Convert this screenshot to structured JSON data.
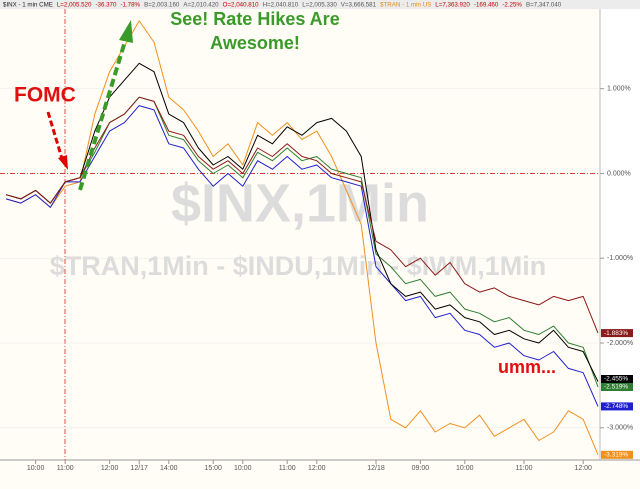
{
  "chart_data": {
    "type": "line",
    "header": {
      "items": [
        {
          "text": "$INX - 1 min CME",
          "color": "#202020"
        },
        {
          "text": "L=2,005.520",
          "color": "#c00000"
        },
        {
          "text": "-36.370",
          "color": "#c00000"
        },
        {
          "text": "-1.78%",
          "color": "#c00000"
        },
        {
          "text": "B=2,003.160",
          "color": "#555555"
        },
        {
          "text": "A=2,010.420",
          "color": "#555555"
        },
        {
          "text": "O=2,040.810",
          "color": "#c00000"
        },
        {
          "text": "H=2,040.810",
          "color": "#555555"
        },
        {
          "text": "L=2,005.330",
          "color": "#555555"
        },
        {
          "text": "V=3,666,581",
          "color": "#555555"
        },
        {
          "text": "$TRAN - 1 min US",
          "color": "#e08a1e"
        },
        {
          "text": "L=7,363.920",
          "color": "#c00000"
        },
        {
          "text": "-169.460",
          "color": "#c00000"
        },
        {
          "text": "-2.25%",
          "color": "#c00000"
        },
        {
          "text": "B=7,347.040",
          "color": "#555555"
        }
      ]
    },
    "watermarks": [
      "$INX,1Min",
      "$TRAN,1Min - $INDU,1Min - $IWM,1Min"
    ],
    "annotations": [
      "FOMC",
      "See! Rate Hikes Are",
      "Awesome!",
      "umm..."
    ],
    "categories": [
      null,
      null,
      "10:00",
      null,
      "11:00",
      null,
      null,
      "12:00",
      null,
      "12/17",
      null,
      "14:00",
      null,
      null,
      "15:00",
      null,
      "10:00",
      null,
      null,
      "11:00",
      null,
      "12:00",
      null,
      null,
      null,
      "12/18",
      null,
      null,
      "09:00",
      null,
      null,
      "10:00",
      null,
      null,
      null,
      "11:00",
      null,
      null,
      null,
      "12:00",
      null
    ],
    "ylim": [
      -3.38,
      1.94
    ],
    "yticks": [
      {
        "value": 1,
        "label": "1.000%"
      },
      {
        "value": 0,
        "label": "0.000%"
      },
      {
        "value": -1,
        "label": "-1.000%"
      },
      {
        "value": -2,
        "label": "-2.000%"
      },
      {
        "value": -3,
        "label": "-3.000%"
      }
    ],
    "series": [
      {
        "color": "#f0901e",
        "values": [
          -0.3,
          -0.35,
          -0.25,
          -0.4,
          -0.15,
          -0.1,
          0.7,
          1.2,
          1.5,
          1.8,
          1.55,
          0.9,
          0.75,
          0.5,
          0.2,
          0.35,
          0.1,
          0.6,
          0.45,
          0.6,
          0.4,
          0.5,
          0.2,
          -0.2,
          -0.6,
          -2.0,
          -2.9,
          -3.0,
          -2.8,
          -3.05,
          -2.95,
          -3.0,
          -2.85,
          -3.1,
          -3.0,
          -2.9,
          -3.15,
          -3.05,
          -2.8,
          -2.9,
          -3.319
        ],
        "value_labels": [
          null,
          null,
          null,
          null,
          null,
          null,
          null,
          null,
          null,
          null,
          null,
          null,
          null,
          null,
          null,
          null,
          null,
          null,
          null,
          null,
          null,
          null,
          null,
          null,
          null,
          null,
          null,
          null,
          null,
          null,
          null,
          null,
          null,
          null,
          null,
          null,
          null,
          null,
          null,
          null,
          "-3.319%"
        ]
      },
      {
        "color": "#1f1fd0",
        "values": [
          -0.3,
          -0.35,
          -0.25,
          -0.4,
          -0.1,
          -0.1,
          0.2,
          0.5,
          0.6,
          0.8,
          0.75,
          0.35,
          0.3,
          0.05,
          -0.15,
          0.0,
          -0.15,
          0.15,
          0.05,
          0.2,
          0.05,
          0.1,
          -0.05,
          -0.1,
          -0.15,
          -1.1,
          -1.3,
          -1.5,
          -1.45,
          -1.7,
          -1.65,
          -1.85,
          -1.9,
          -2.05,
          -2.0,
          -2.15,
          -2.2,
          -2.1,
          -2.3,
          -2.35,
          -2.748
        ],
        "value_labels": [
          null,
          null,
          null,
          null,
          null,
          null,
          null,
          null,
          null,
          null,
          null,
          null,
          null,
          null,
          null,
          null,
          null,
          null,
          null,
          null,
          null,
          null,
          null,
          null,
          null,
          null,
          null,
          null,
          null,
          null,
          null,
          null,
          null,
          null,
          null,
          null,
          null,
          null,
          null,
          null,
          "-2.748%"
        ]
      },
      {
        "color": "#2e7d32",
        "values": [
          -0.25,
          -0.3,
          -0.2,
          -0.35,
          -0.1,
          -0.05,
          0.25,
          0.6,
          0.7,
          0.9,
          0.85,
          0.45,
          0.4,
          0.15,
          0.0,
          0.1,
          -0.05,
          0.25,
          0.15,
          0.3,
          0.15,
          0.2,
          0.05,
          0.0,
          -0.05,
          -0.95,
          -1.1,
          -1.3,
          -1.25,
          -1.45,
          -1.4,
          -1.6,
          -1.65,
          -1.75,
          -1.7,
          -1.85,
          -1.9,
          -1.8,
          -2.0,
          -2.05,
          -2.519
        ],
        "value_labels": [
          null,
          null,
          null,
          null,
          null,
          null,
          null,
          null,
          null,
          null,
          null,
          null,
          null,
          null,
          null,
          null,
          null,
          null,
          null,
          null,
          null,
          null,
          null,
          null,
          null,
          null,
          null,
          null,
          null,
          null,
          null,
          null,
          null,
          null,
          null,
          null,
          null,
          null,
          null,
          null,
          "-2.519%"
        ]
      },
      {
        "color": "#000000",
        "values": [
          -0.25,
          -0.3,
          -0.2,
          -0.35,
          -0.1,
          -0.05,
          0.5,
          0.9,
          1.1,
          1.3,
          1.2,
          0.7,
          0.6,
          0.3,
          0.1,
          0.2,
          0.05,
          0.45,
          0.35,
          0.55,
          0.45,
          0.6,
          0.65,
          0.5,
          0.2,
          -0.9,
          -1.3,
          -1.45,
          -1.4,
          -1.6,
          -1.55,
          -1.7,
          -1.75,
          -1.9,
          -1.85,
          -1.95,
          -2.0,
          -1.85,
          -2.05,
          -2.1,
          -2.455
        ],
        "value_labels": [
          null,
          null,
          null,
          null,
          null,
          null,
          null,
          null,
          null,
          null,
          null,
          null,
          null,
          null,
          null,
          null,
          null,
          null,
          null,
          null,
          null,
          null,
          null,
          null,
          null,
          null,
          null,
          null,
          null,
          null,
          null,
          null,
          null,
          null,
          null,
          null,
          null,
          null,
          null,
          null,
          "-2.455%"
        ]
      },
      {
        "color": "#8b1a1a",
        "values": [
          -0.25,
          -0.3,
          -0.2,
          -0.35,
          -0.1,
          -0.05,
          0.3,
          0.6,
          0.7,
          0.9,
          0.85,
          0.5,
          0.45,
          0.2,
          0.05,
          0.15,
          0.0,
          0.3,
          0.2,
          0.35,
          0.2,
          0.15,
          0.0,
          -0.05,
          -0.1,
          -0.8,
          -0.9,
          -1.1,
          -1.0,
          -1.2,
          -1.05,
          -1.3,
          -1.4,
          -1.35,
          -1.45,
          -1.5,
          -1.55,
          -1.45,
          -1.5,
          -1.45,
          -1.883
        ],
        "value_labels": [
          null,
          null,
          null,
          null,
          null,
          null,
          null,
          null,
          null,
          null,
          null,
          null,
          null,
          null,
          null,
          null,
          null,
          null,
          null,
          null,
          null,
          null,
          null,
          null,
          null,
          null,
          null,
          null,
          null,
          null,
          null,
          null,
          null,
          null,
          null,
          null,
          null,
          null,
          null,
          null,
          "-1.883%"
        ]
      }
    ]
  }
}
